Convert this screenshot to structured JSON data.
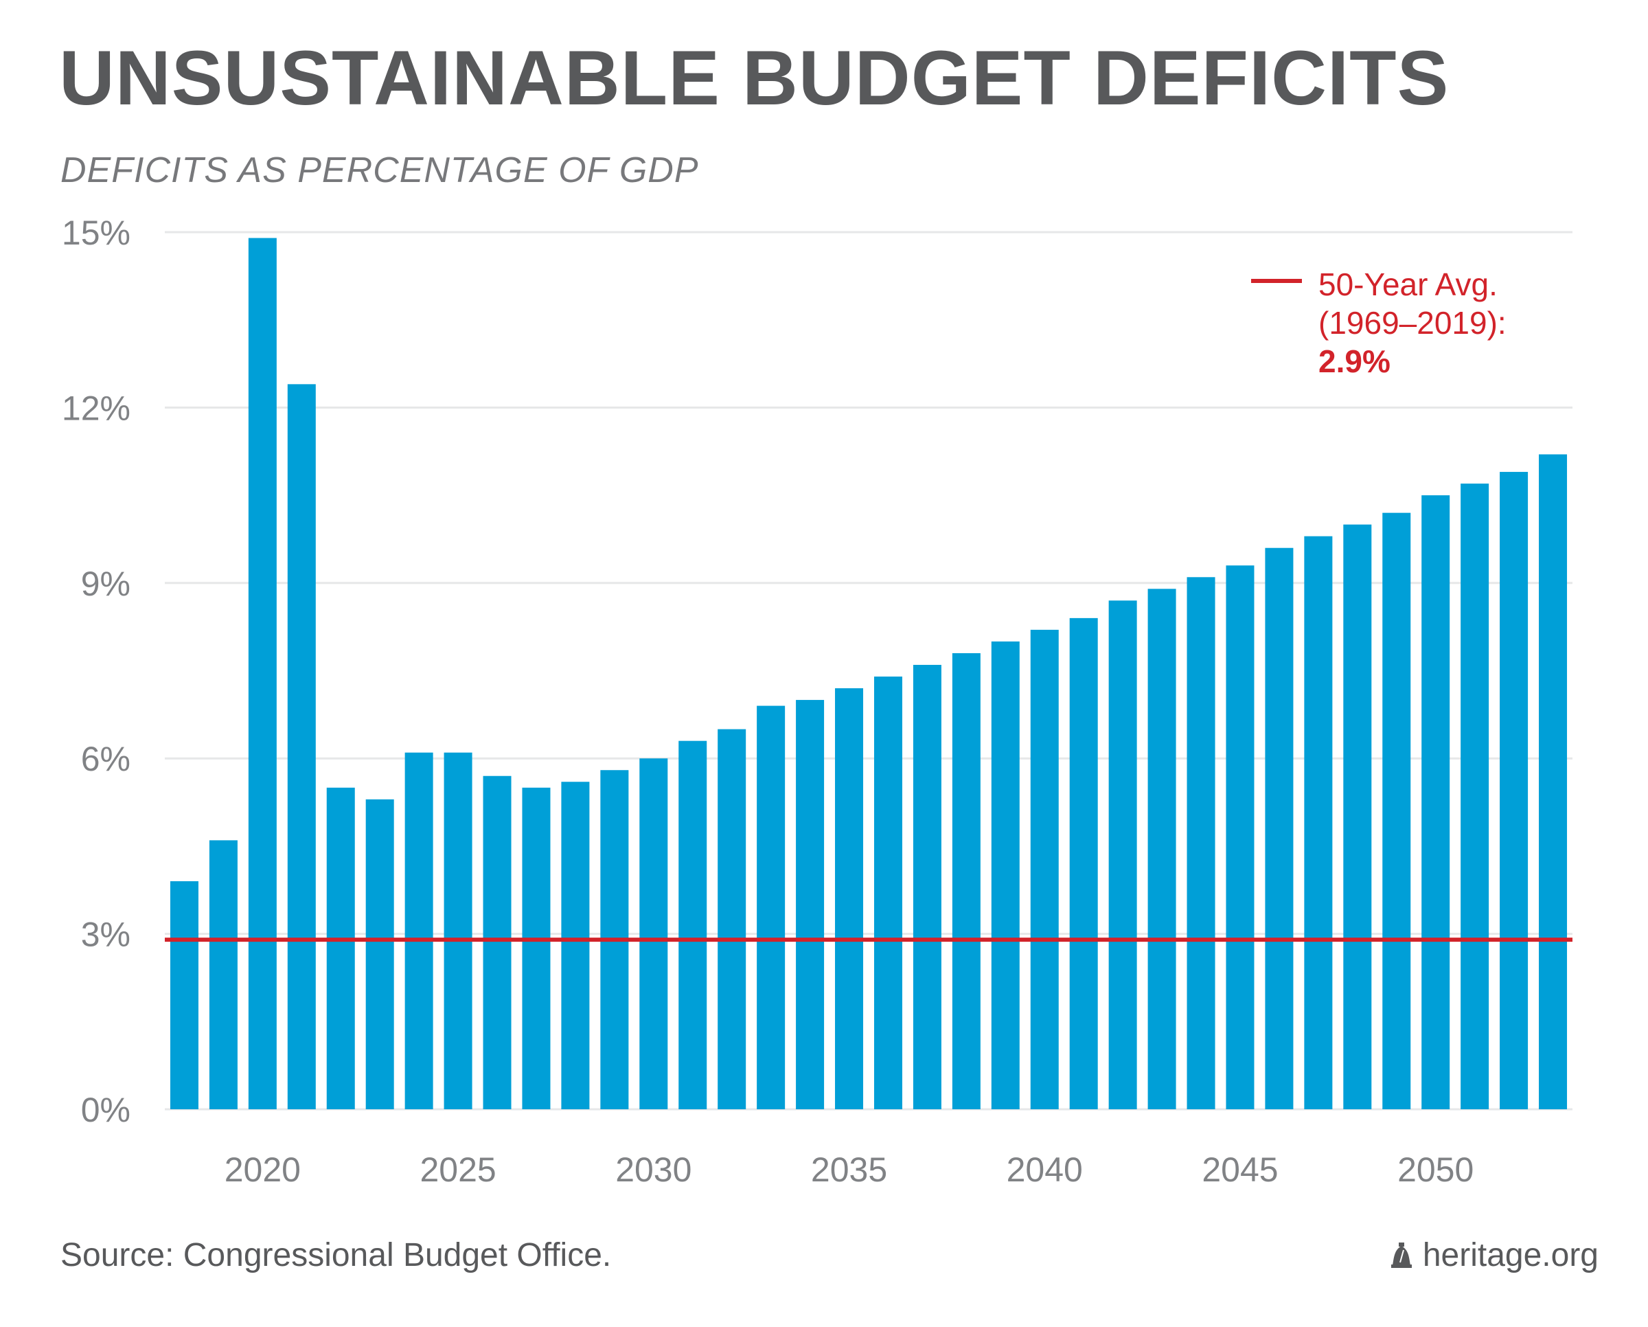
{
  "title": "UNSUSTAINABLE BUDGET DEFICITS",
  "subtitle": "DEFICITS AS PERCENTAGE OF GDP",
  "source": "Source: Congressional Budget Office.",
  "brand": "heritage.org",
  "brand_icon": "liberty-bell-icon",
  "colors": {
    "bar": "#009fd7",
    "average_line": "#d2232a",
    "text": "#58595b",
    "axis_text": "#808285",
    "grid": "#e6e7e8"
  },
  "legend": {
    "line1": "50-Year Avg.",
    "line2": "(1969–2019):",
    "value": "2.9%"
  },
  "chart_data": {
    "type": "bar",
    "categories": [
      "2018",
      "2019",
      "2020",
      "2021",
      "2022",
      "2023",
      "2024",
      "2025",
      "2026",
      "2027",
      "2028",
      "2029",
      "2030",
      "2031",
      "2032",
      "2033",
      "2034",
      "2035",
      "2036",
      "2037",
      "2038",
      "2039",
      "2040",
      "2041",
      "2042",
      "2043",
      "2044",
      "2045",
      "2046",
      "2047",
      "2048",
      "2049",
      "2050",
      "2051",
      "2052",
      "2053"
    ],
    "values": [
      3.9,
      4.6,
      14.9,
      12.4,
      5.5,
      5.3,
      6.1,
      6.1,
      5.7,
      5.5,
      5.6,
      5.8,
      6.0,
      6.3,
      6.5,
      6.9,
      7.0,
      7.2,
      7.4,
      7.6,
      7.8,
      8.0,
      8.2,
      8.4,
      8.7,
      8.9,
      9.1,
      9.3,
      9.6,
      9.8,
      10.0,
      10.2,
      10.5,
      10.7,
      10.9,
      11.2
    ],
    "x_tick_labels": [
      "2020",
      "2025",
      "2030",
      "2035",
      "2040",
      "2045",
      "2050"
    ],
    "y_ticks": [
      0,
      3,
      6,
      9,
      12,
      15
    ],
    "y_tick_labels": [
      "0%",
      "3%",
      "6%",
      "9%",
      "12%",
      "15%"
    ],
    "ylim": [
      0,
      15
    ],
    "reference_line": {
      "value": 2.9,
      "label": "50-Year Avg. (1969–2019): 2.9%"
    },
    "grid": true,
    "legend_position": "top-right"
  }
}
